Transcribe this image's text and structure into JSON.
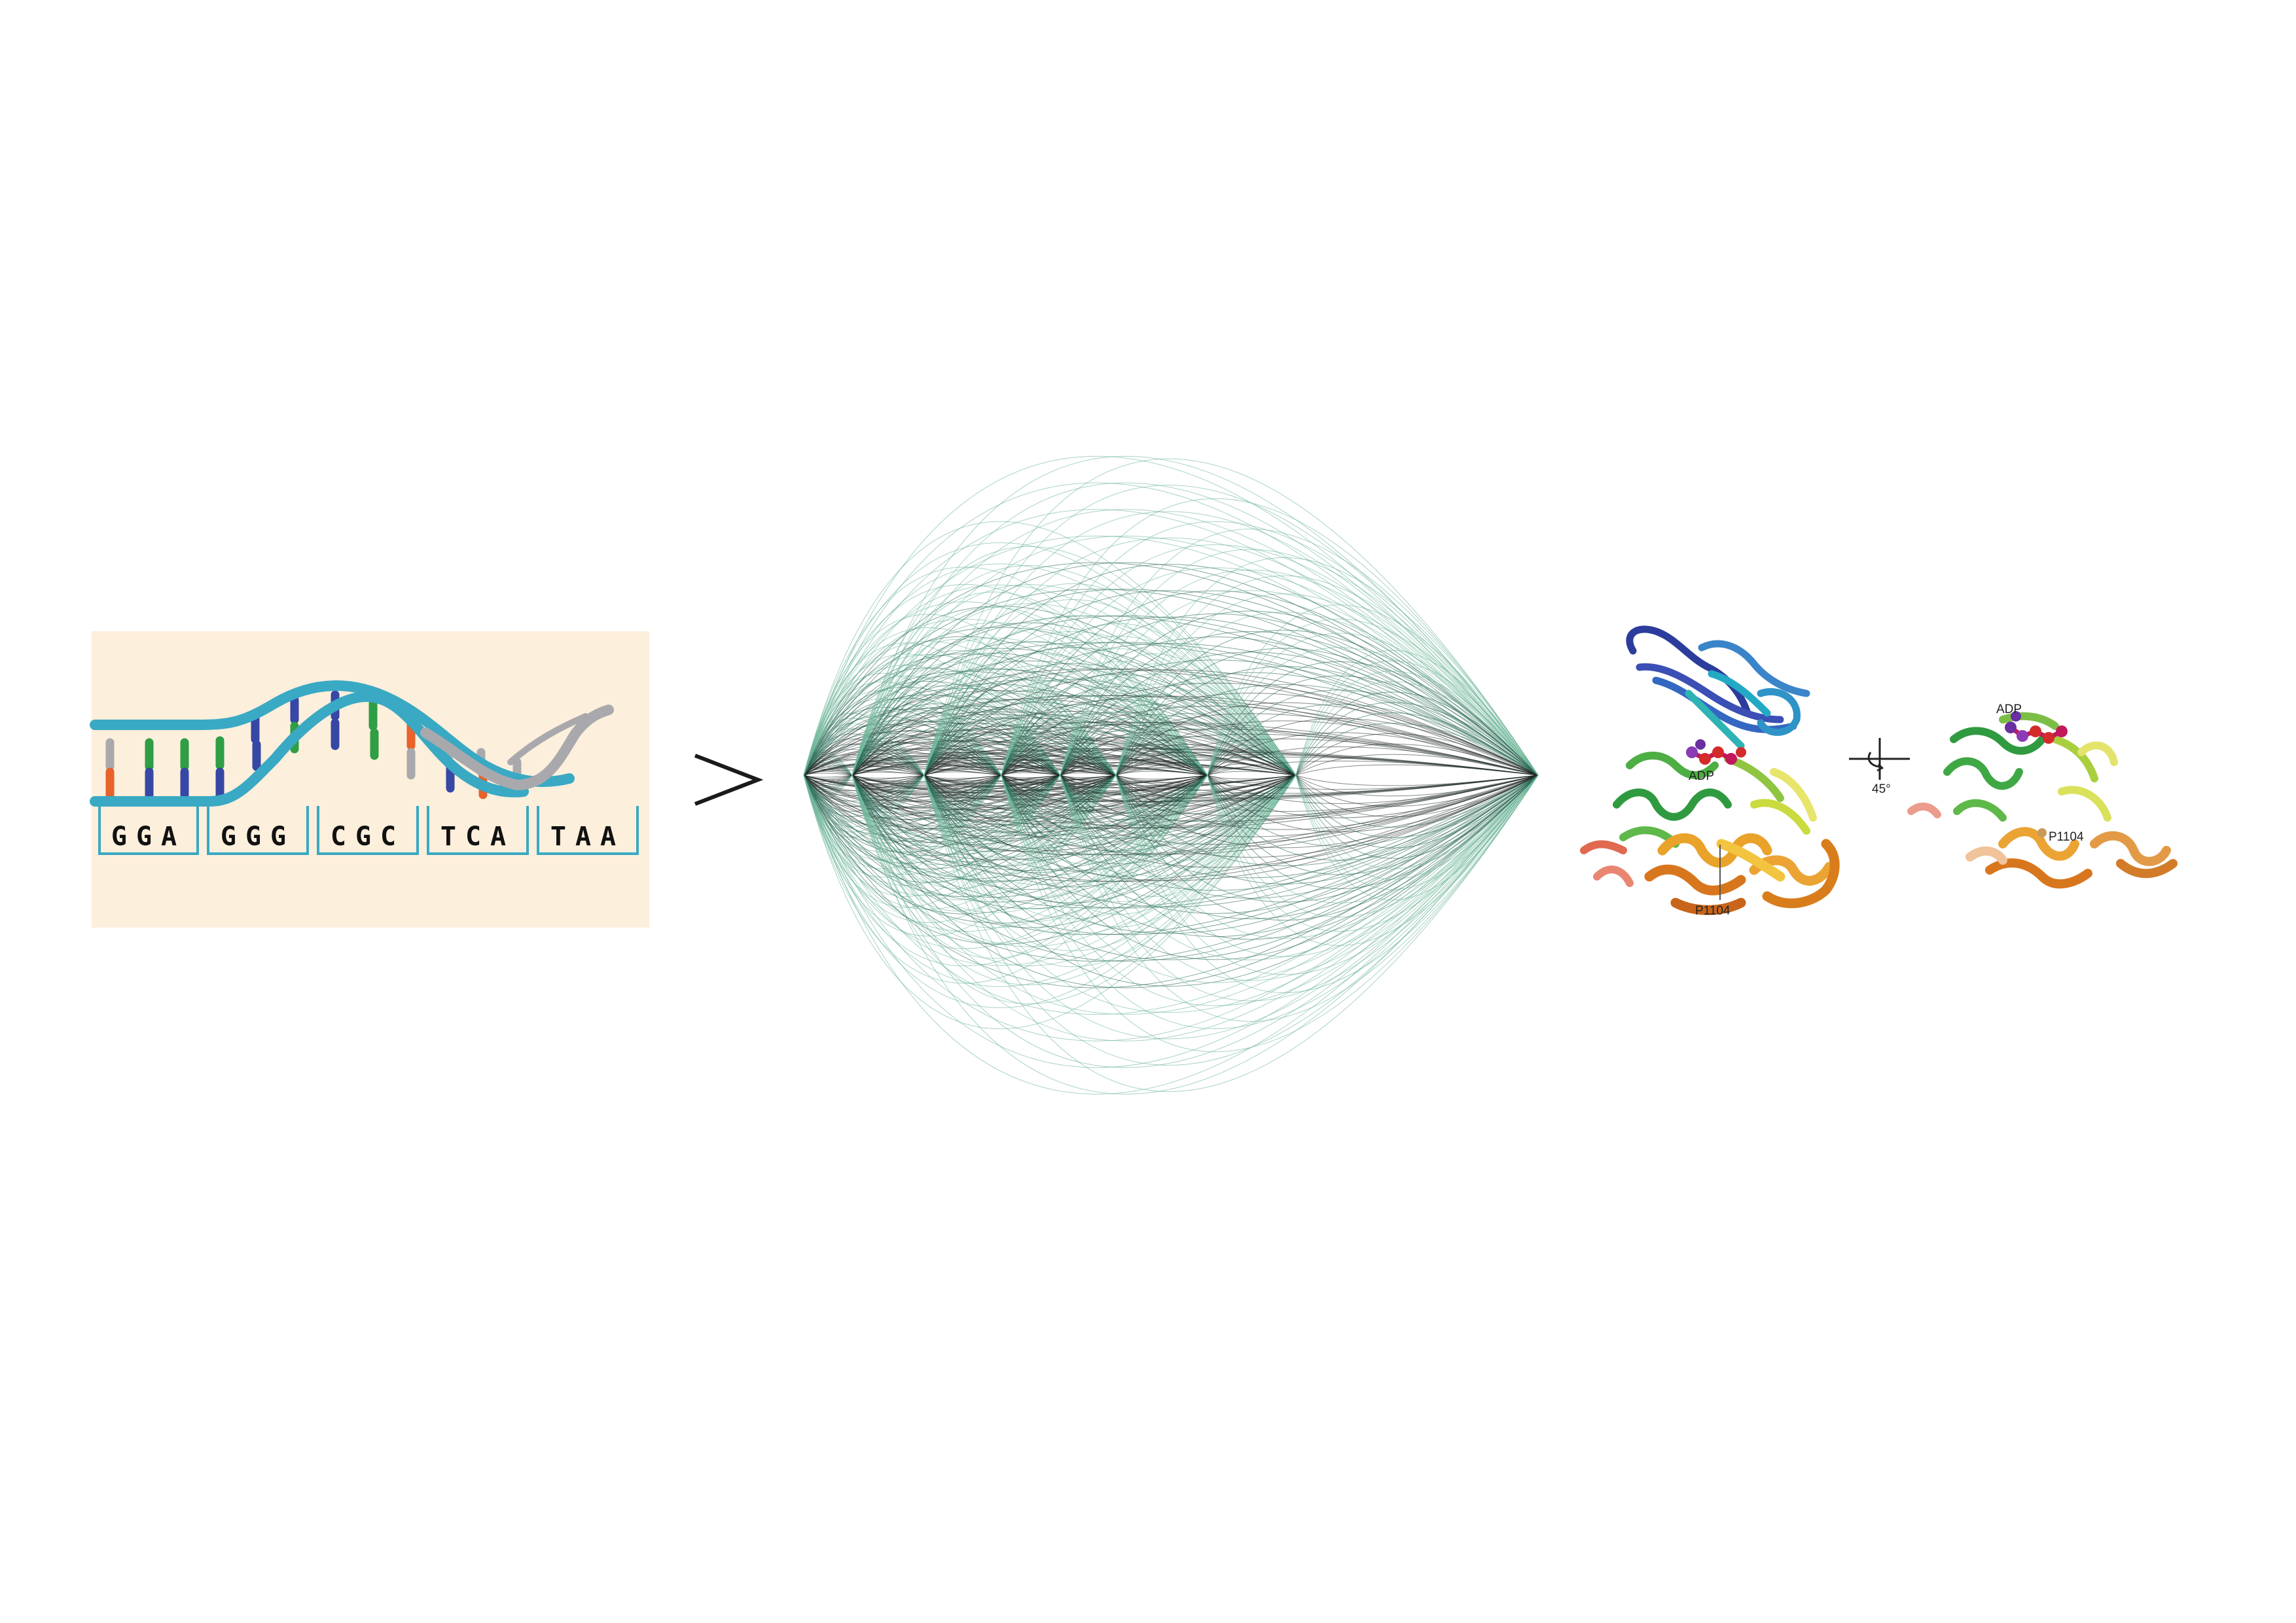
{
  "dna_panel": {
    "background": "#fcefdc",
    "backbone_color": "#3aa9c4",
    "fading_strand_color": "#a9a9ad",
    "codons": [
      "GGA",
      "GGG",
      "CGC",
      "TCA",
      "TAA"
    ]
  },
  "arrow_symbol": ">",
  "network": {
    "layer_count": 9,
    "edge_colors": [
      "#1f2a27",
      "#2f6d58",
      "#6fb59a"
    ]
  },
  "protein_views": {
    "left": {
      "ligand_label": "ADP",
      "residue_label": "P1104"
    },
    "rotation_label": "45°",
    "right": {
      "ligand_label": "ADP",
      "residue_label": "P1104"
    }
  }
}
